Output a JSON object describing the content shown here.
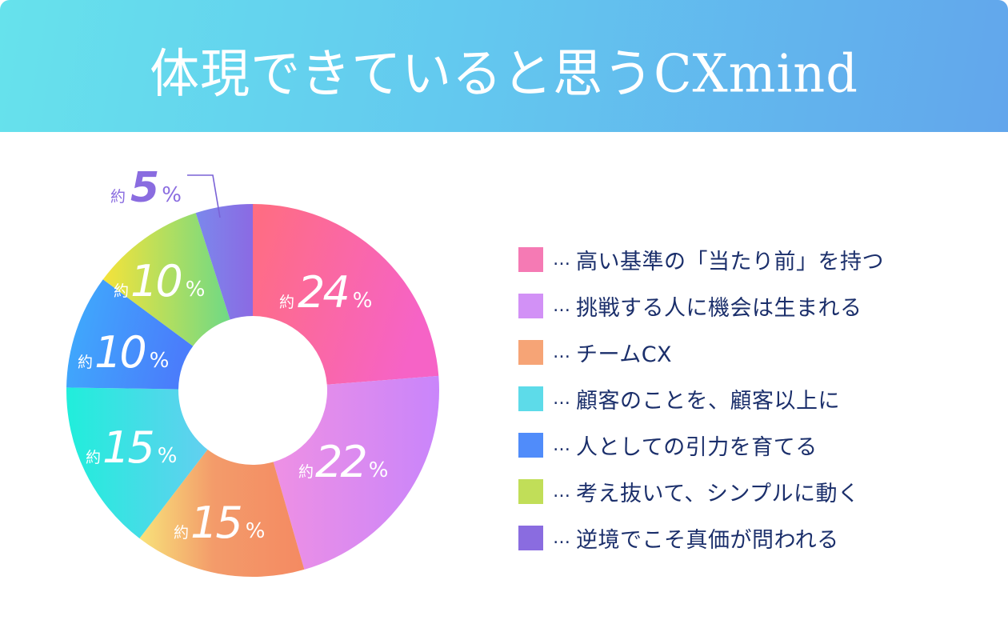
{
  "header": {
    "title": "体現できていると思うCXmind"
  },
  "colors": {
    "header_gradient_start": "#66e2ec",
    "header_gradient_end": "#62a6ec",
    "legend_text": "#1b2f6b",
    "outer_label": "#8a6ce0"
  },
  "labels": {
    "prefix": "約",
    "suffix": "%",
    "slice_0_num": "24",
    "slice_1_num": "22",
    "slice_2_num": "15",
    "slice_3_num": "15",
    "slice_4_num": "10",
    "slice_5_num": "10",
    "slice_6_num": "5"
  },
  "legend": {
    "separator": "…",
    "items": [
      {
        "label": "高い基準の「当たり前」を持つ",
        "color": "#f57ab4"
      },
      {
        "label": "挑戦する人に機会は生まれる",
        "color": "#d291f6"
      },
      {
        "label": "チームCX",
        "color": "#f6a476"
      },
      {
        "label": "顧客のことを、顧客以上に",
        "color": "#5ddbe9"
      },
      {
        "label": "人としての引力を育てる",
        "color": "#508cfa"
      },
      {
        "label": "考え抜いて、シンプルに動く",
        "color": "#c1de58"
      },
      {
        "label": "逆境でこそ真価が問われる",
        "color": "#8a6ce0"
      }
    ]
  },
  "chart_data": {
    "type": "pie",
    "subtype": "donut",
    "title": "体現できていると思うCXmind",
    "categories": [
      "高い基準の「当たり前」を持つ",
      "挑戦する人に機会は生まれる",
      "チームCX",
      "顧客のことを、顧客以上に",
      "人としての引力を育てる",
      "考え抜いて、シンプルに動く",
      "逆境でこそ真価が問われる"
    ],
    "values": [
      24,
      22,
      15,
      15,
      10,
      10,
      5
    ],
    "value_labels": [
      "約24%",
      "約22%",
      "約15%",
      "約15%",
      "約10%",
      "約10%",
      "約5%"
    ],
    "unit": "%",
    "colors": [
      "#f57ab4",
      "#d291f6",
      "#f6a476",
      "#5ddbe9",
      "#508cfa",
      "#c1de58",
      "#8a6ce0"
    ],
    "start_angle_deg": 0,
    "direction": "clockwise",
    "legend_position": "right"
  }
}
